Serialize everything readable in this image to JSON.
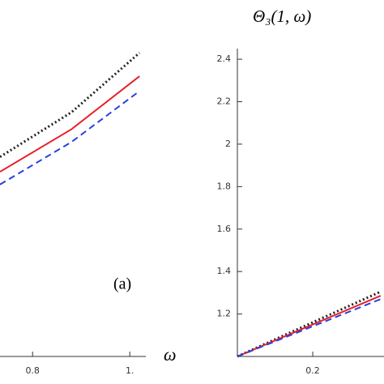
{
  "chart_data": [
    {
      "type": "line",
      "xlabel": "ω",
      "annotation": "(a)",
      "x": [
        0.733,
        0.88,
        1.02
      ],
      "xlim": [
        0.733,
        1.033
      ],
      "xticks": [
        0.8,
        {
          "value": 1.0,
          "label": "1."
        }
      ],
      "ylim": [
        1.0,
        2.45
      ],
      "series": [
        {
          "color": "#222222",
          "style": "dotted",
          "values": [
            1.94,
            2.15,
            2.43
          ]
        },
        {
          "color": "#e8202a",
          "style": "solid",
          "values": [
            1.87,
            2.07,
            2.32
          ]
        },
        {
          "color": "#2a3fe0",
          "style": "dashed",
          "values": [
            1.81,
            2.01,
            2.25
          ]
        }
      ]
    },
    {
      "type": "line",
      "ylabel": "Θ₃(1, ω)",
      "x": [
        0,
        0.38
      ],
      "xlim": [
        0,
        0.389
      ],
      "xticks": [
        0.2
      ],
      "ylim": [
        1.0,
        2.45
      ],
      "yticks": [
        1.2,
        1.4,
        1.6,
        1.8,
        2.0,
        2.2,
        2.4
      ],
      "series": [
        {
          "color": "#222222",
          "style": "dotted",
          "values": [
            1.0,
            1.305
          ]
        },
        {
          "color": "#e8202a",
          "style": "solid",
          "values": [
            1.0,
            1.286
          ]
        },
        {
          "color": "#2a3fe0",
          "style": "dashed",
          "values": [
            1.0,
            1.27
          ]
        }
      ]
    }
  ]
}
